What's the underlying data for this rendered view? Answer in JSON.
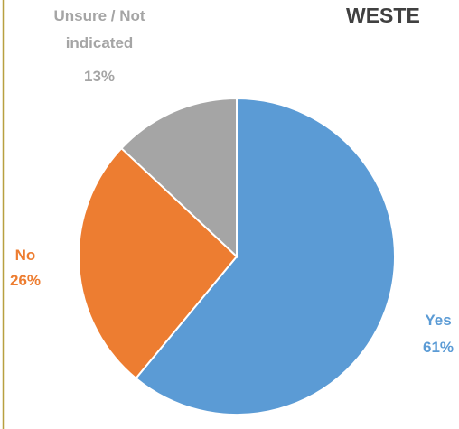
{
  "chart_data": {
    "type": "pie",
    "title": "WESTE",
    "categories": [
      "Yes",
      "No",
      "Unsure / Not indicated"
    ],
    "values": [
      61,
      26,
      13
    ],
    "value_labels": [
      "61%",
      "26%",
      "13%"
    ],
    "colors": [
      "#5b9bd5",
      "#ed7d31",
      "#a5a5a5"
    ]
  }
}
